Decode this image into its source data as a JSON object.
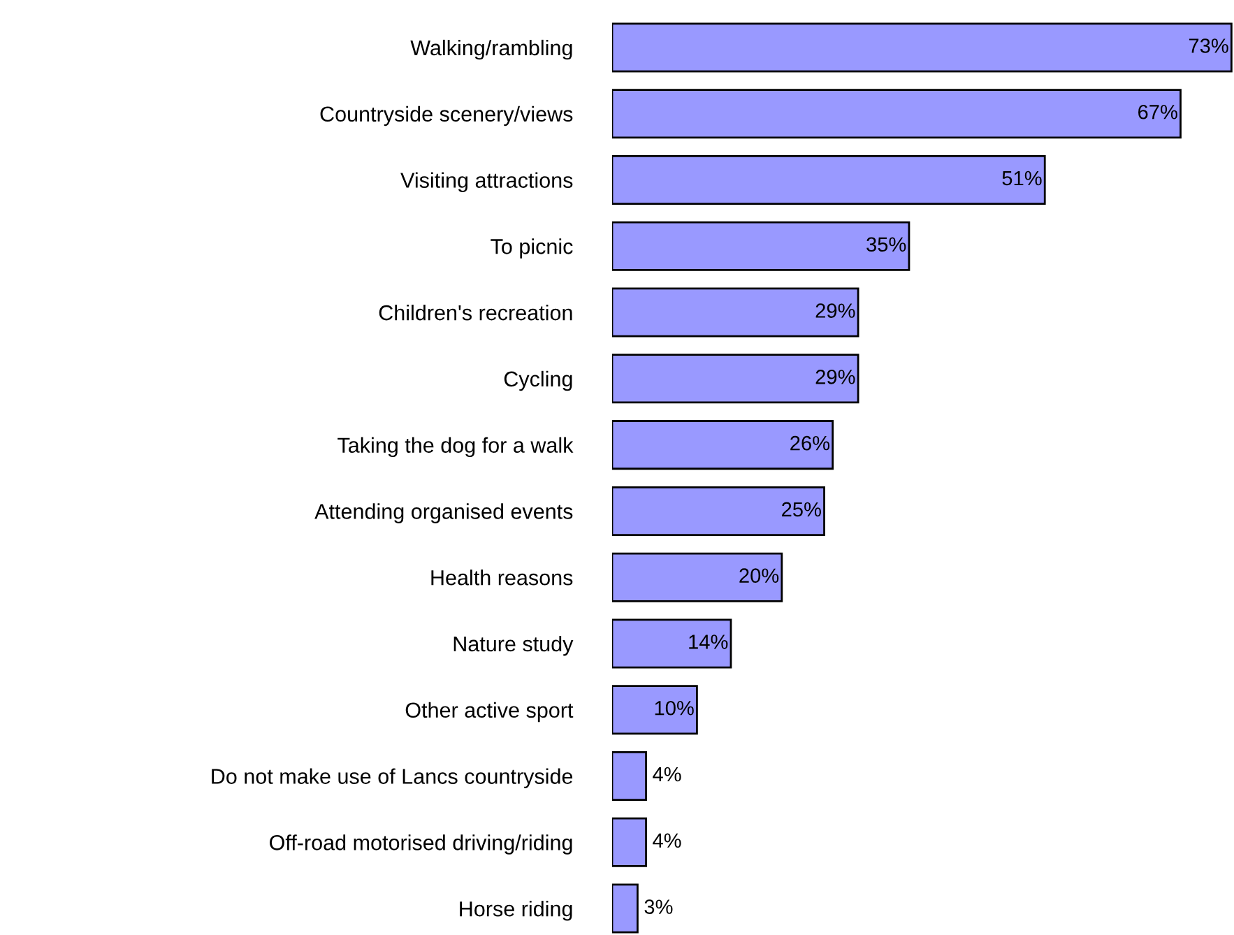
{
  "chart_data": {
    "type": "bar",
    "orientation": "horizontal",
    "categories": [
      "Walking/rambling",
      "Countryside scenery/views",
      "Visiting attractions",
      "To picnic",
      "Children's recreation",
      "Cycling",
      "Taking the dog for a walk",
      "Attending organised events",
      "Health reasons",
      "Nature study",
      "Other active sport",
      "Do not make use of Lancs countryside",
      "Off-road motorised driving/riding",
      "Horse riding"
    ],
    "values": [
      73,
      67,
      51,
      35,
      29,
      29,
      26,
      25,
      20,
      14,
      10,
      4,
      4,
      3
    ],
    "value_labels": [
      "73%",
      "67%",
      "51%",
      "35%",
      "29%",
      "29%",
      "26%",
      "25%",
      "20%",
      "14%",
      "10%",
      "4%",
      "4%",
      "3%"
    ],
    "color": "#9999ff",
    "xlim": [
      0,
      73.3
    ],
    "grid": false,
    "legend": false
  }
}
